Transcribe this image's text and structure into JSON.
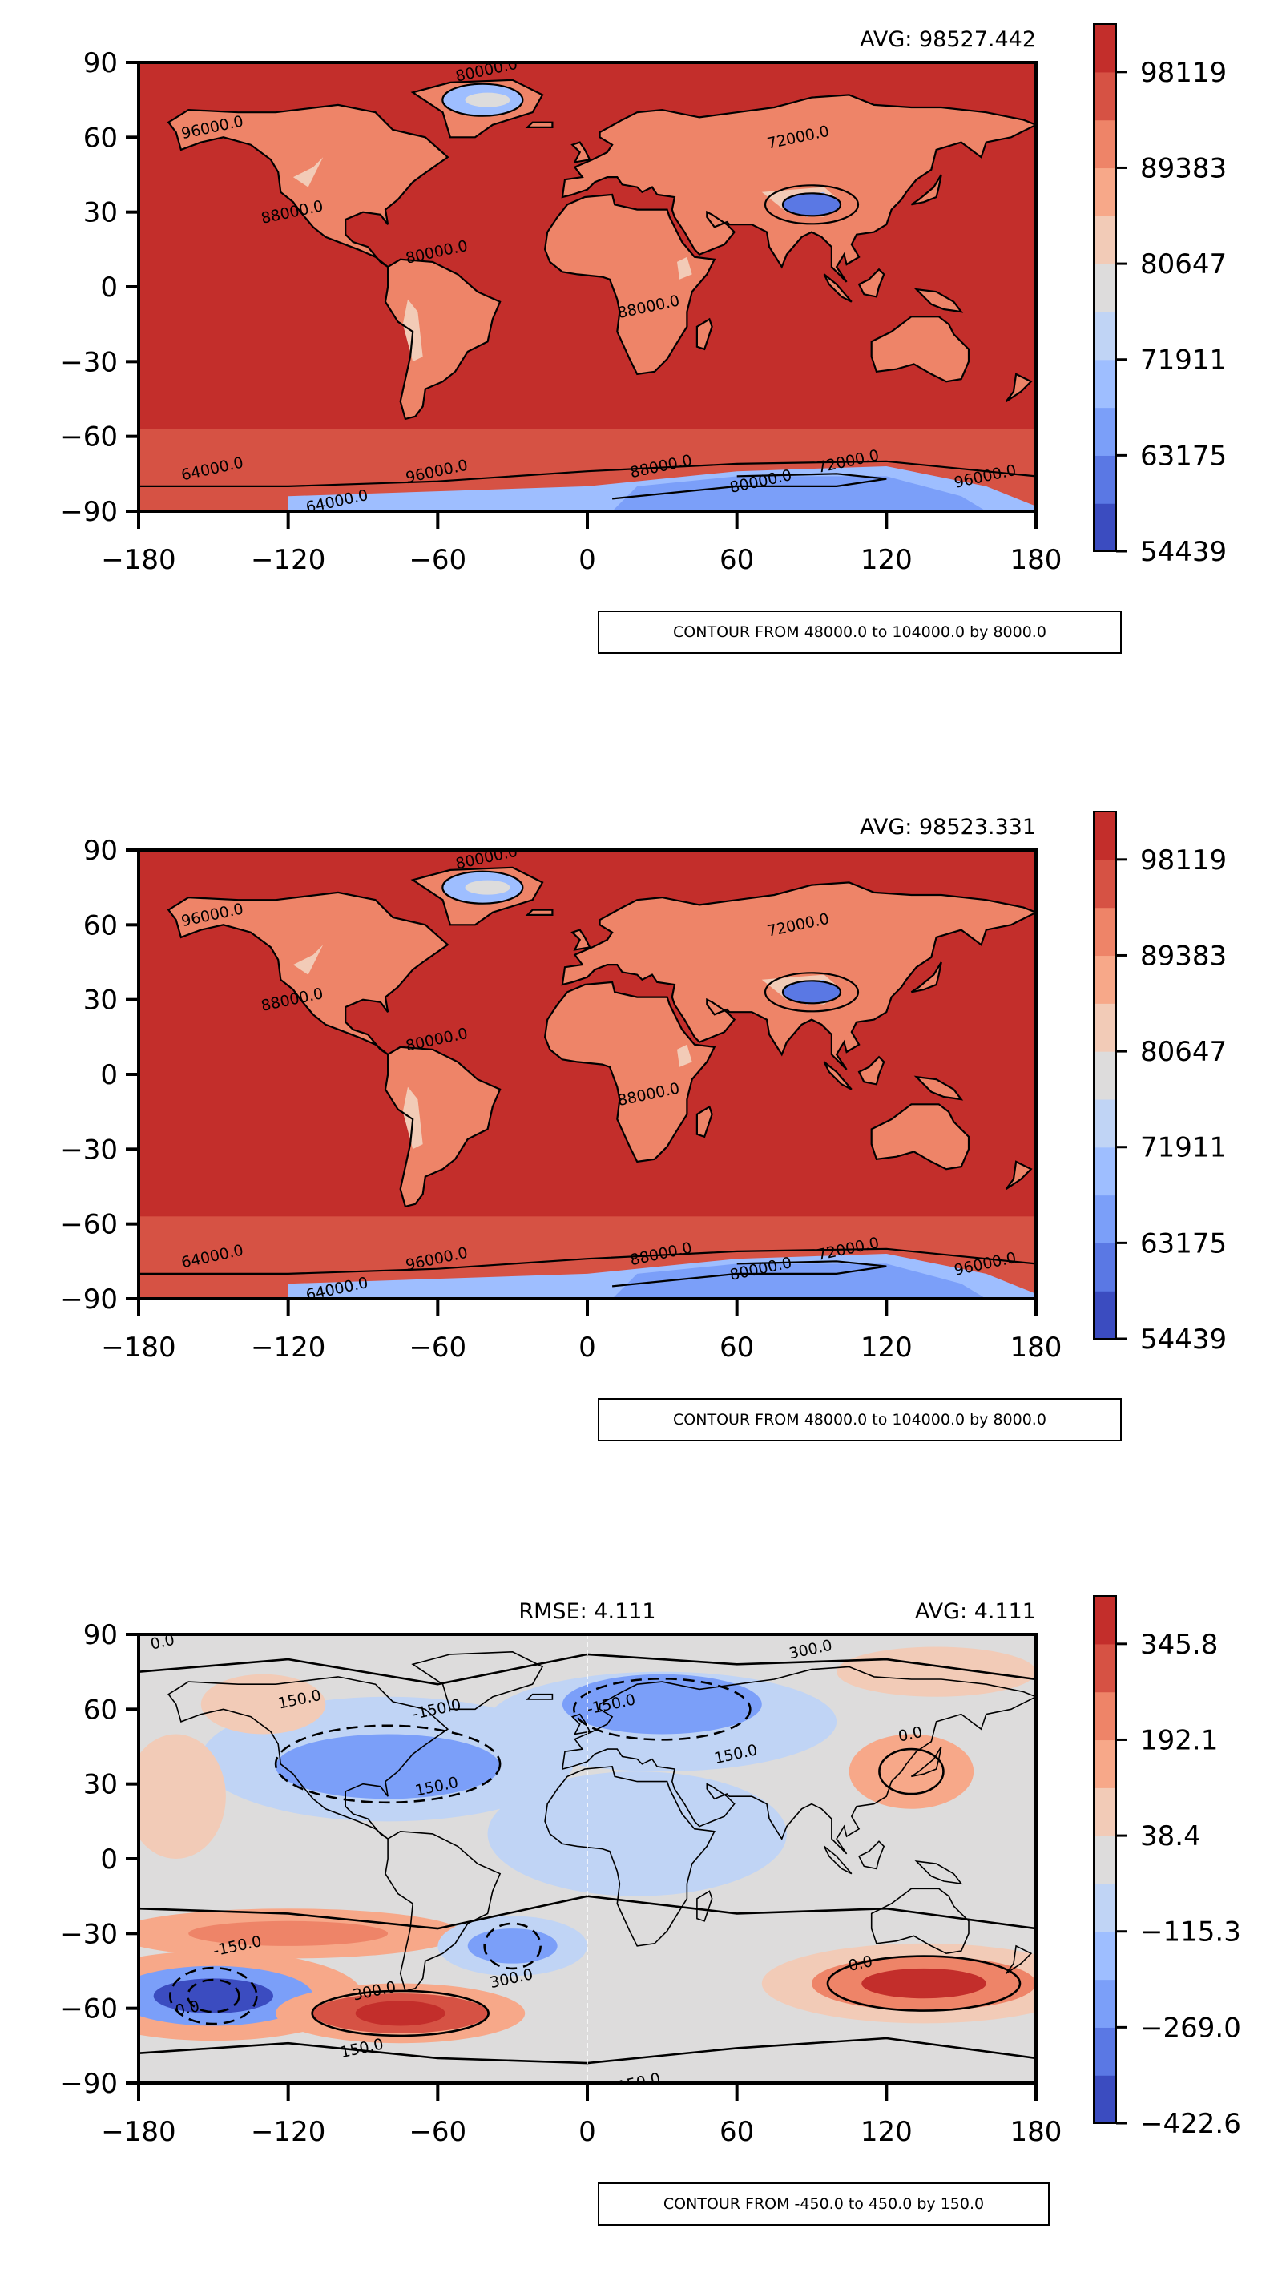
{
  "chart_data": [
    {
      "type": "heatmap",
      "title": "",
      "avg_label": "AVG: 98527.442",
      "rmse_label": "",
      "xlabel": "",
      "ylabel": "",
      "xlim": [
        -180,
        180
      ],
      "ylim": [
        -90,
        90
      ],
      "x_ticks": [
        "−180",
        "−120",
        "−60",
        "0",
        "60",
        "120",
        "180"
      ],
      "y_ticks": [
        "90",
        "60",
        "30",
        "0",
        "−30",
        "−60",
        "−90"
      ],
      "colorbar_range": [
        54439,
        104000
      ],
      "colorbar_ticks": [
        "98119",
        "89383",
        "80647",
        "71911",
        "63175",
        "54439"
      ],
      "contour_note": "CONTOUR FROM 48000.0 to 104000.0 by 8000.0",
      "contour_labels": [
        "96000.0",
        "88000.0",
        "80000.0",
        "72000.0",
        "64000.0"
      ],
      "colors": [
        "#3b4cc0",
        "#5a78e4",
        "#7b9ff9",
        "#9ebeff",
        "#c0d4f5",
        "#dddcdc",
        "#f2cbb7",
        "#f7a889",
        "#ee8468",
        "#d65244",
        "#c32e2b"
      ]
    },
    {
      "type": "heatmap",
      "title": "",
      "avg_label": "AVG: 98523.331",
      "rmse_label": "",
      "xlabel": "",
      "ylabel": "",
      "xlim": [
        -180,
        180
      ],
      "ylim": [
        -90,
        90
      ],
      "x_ticks": [
        "−180",
        "−120",
        "−60",
        "0",
        "60",
        "120",
        "180"
      ],
      "y_ticks": [
        "90",
        "60",
        "30",
        "0",
        "−30",
        "−60",
        "−90"
      ],
      "colorbar_range": [
        54439,
        104000
      ],
      "colorbar_ticks": [
        "98119",
        "89383",
        "80647",
        "71911",
        "63175",
        "54439"
      ],
      "contour_note": "CONTOUR FROM 48000.0 to 104000.0 by 8000.0",
      "contour_labels": [
        "96000.0",
        "88000.0",
        "80000.0",
        "72000.0",
        "64000.0"
      ],
      "colors": [
        "#3b4cc0",
        "#5a78e4",
        "#7b9ff9",
        "#9ebeff",
        "#c0d4f5",
        "#dddcdc",
        "#f2cbb7",
        "#f7a889",
        "#ee8468",
        "#d65244",
        "#c32e2b"
      ]
    },
    {
      "type": "heatmap",
      "title": "",
      "avg_label": "AVG: 4.111",
      "rmse_label": "RMSE: 4.111",
      "xlabel": "",
      "ylabel": "",
      "xlim": [
        -180,
        180
      ],
      "ylim": [
        -90,
        90
      ],
      "x_ticks": [
        "−180",
        "−120",
        "−60",
        "0",
        "60",
        "120",
        "180"
      ],
      "y_ticks": [
        "90",
        "60",
        "30",
        "0",
        "−30",
        "−60",
        "−90"
      ],
      "colorbar_range": [
        -422.6,
        450
      ],
      "colorbar_ticks": [
        "345.8",
        "192.1",
        "38.4",
        "−115.3",
        "−269.0",
        "−422.6"
      ],
      "contour_note": "CONTOUR FROM -450.0 to 450.0 by 150.0",
      "contour_labels": [
        "0.0",
        "150.0",
        "-150.0",
        "300.0"
      ],
      "colors": [
        "#3b4cc0",
        "#5a78e4",
        "#7b9ff9",
        "#9ebeff",
        "#c0d4f5",
        "#dddcdc",
        "#f2cbb7",
        "#f7a889",
        "#ee8468",
        "#d65244",
        "#c32e2b"
      ]
    }
  ]
}
